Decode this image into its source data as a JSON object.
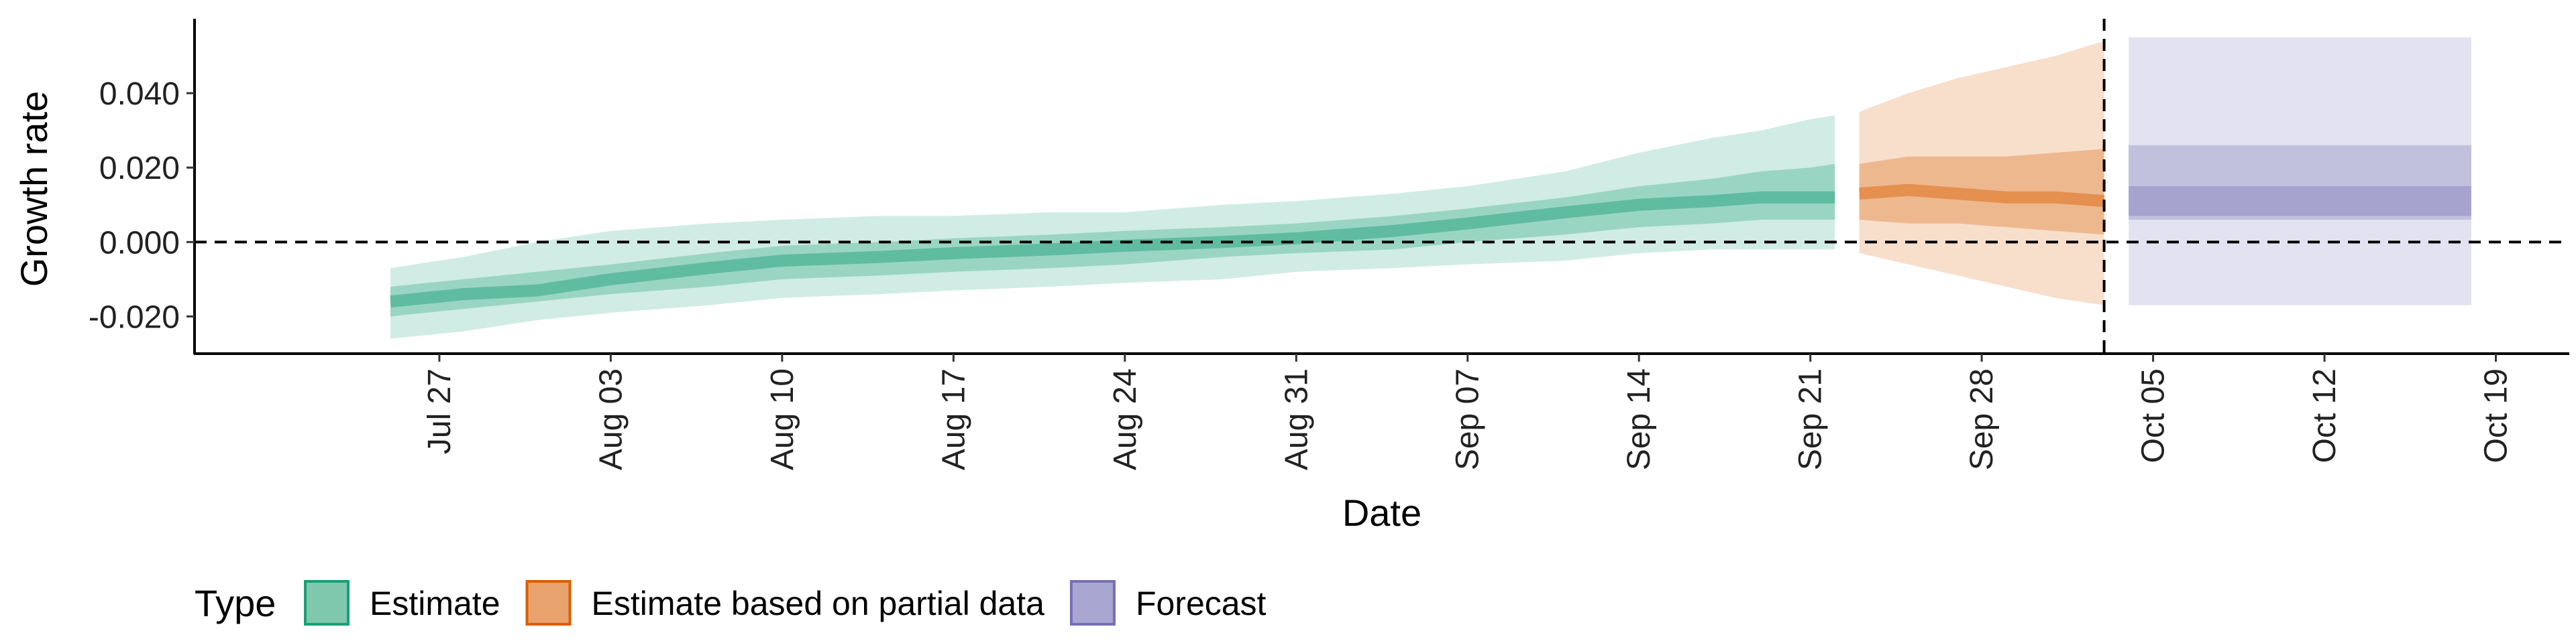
{
  "chart_data": {
    "type": "area",
    "xlabel": "Date",
    "ylabel": "Growth rate",
    "x_range": [
      "2021-07-17",
      "2021-10-22"
    ],
    "ylim": [
      -0.03,
      0.06
    ],
    "y_ticks": [
      -0.02,
      0.0,
      0.02,
      0.04
    ],
    "y_tick_labels": [
      "-0.020",
      "0.000",
      "0.020",
      "0.040"
    ],
    "x_ticks": [
      "2021-07-27",
      "2021-08-03",
      "2021-08-10",
      "2021-08-17",
      "2021-08-24",
      "2021-08-31",
      "2021-09-07",
      "2021-09-14",
      "2021-09-21",
      "2021-09-28",
      "2021-10-05",
      "2021-10-12",
      "2021-10-19"
    ],
    "x_tick_labels": [
      "Jul 27",
      "Aug 03",
      "Aug 10",
      "Aug 17",
      "Aug 24",
      "Aug 31",
      "Sep 07",
      "Sep 14",
      "Sep 21",
      "Sep 28",
      "Oct 05",
      "Oct 12",
      "Oct 19"
    ],
    "hline_y": 0.0,
    "vline_x": "2021-10-03",
    "grid": false,
    "legend": {
      "title": "Type",
      "position": "bottom-left",
      "entries": [
        {
          "label": "Estimate",
          "fill": "#7fc8ad",
          "stroke": "#1b9e77"
        },
        {
          "label": "Estimate based on partial data",
          "fill": "#e8a26e",
          "stroke": "#d95f02"
        },
        {
          "label": "Forecast",
          "fill": "#a9a6d1",
          "stroke": "#7570b3"
        }
      ]
    },
    "series": [
      {
        "name": "Estimate",
        "color": "#1b9e77",
        "x": [
          "2021-07-25",
          "2021-07-28",
          "2021-07-31",
          "2021-08-03",
          "2021-08-07",
          "2021-08-10",
          "2021-08-14",
          "2021-08-17",
          "2021-08-21",
          "2021-08-24",
          "2021-08-28",
          "2021-08-31",
          "2021-09-04",
          "2021-09-07",
          "2021-09-11",
          "2021-09-14",
          "2021-09-17",
          "2021-09-19",
          "2021-09-21",
          "2021-09-22"
        ],
        "median": [
          -0.016,
          -0.014,
          -0.013,
          -0.01,
          -0.007,
          -0.005,
          -0.004,
          -0.003,
          -0.002,
          -0.001,
          0.0,
          0.001,
          0.003,
          0.005,
          0.008,
          0.01,
          0.011,
          0.012,
          0.012,
          0.012
        ],
        "lower_90": [
          -0.026,
          -0.024,
          -0.021,
          -0.019,
          -0.017,
          -0.015,
          -0.014,
          -0.013,
          -0.012,
          -0.011,
          -0.01,
          -0.008,
          -0.007,
          -0.006,
          -0.005,
          -0.003,
          -0.002,
          -0.002,
          -0.002,
          -0.002
        ],
        "upper_90": [
          -0.007,
          -0.004,
          0.0,
          0.003,
          0.005,
          0.006,
          0.007,
          0.007,
          0.008,
          0.008,
          0.01,
          0.011,
          0.013,
          0.015,
          0.019,
          0.024,
          0.028,
          0.03,
          0.033,
          0.034
        ],
        "lower_50": [
          -0.02,
          -0.018,
          -0.016,
          -0.014,
          -0.012,
          -0.01,
          -0.009,
          -0.008,
          -0.007,
          -0.006,
          -0.004,
          -0.003,
          -0.002,
          0.0,
          0.002,
          0.004,
          0.005,
          0.006,
          0.006,
          0.006
        ],
        "upper_50": [
          -0.012,
          -0.01,
          -0.008,
          -0.006,
          -0.003,
          -0.001,
          0.0,
          0.001,
          0.002,
          0.003,
          0.004,
          0.005,
          0.007,
          0.009,
          0.012,
          0.015,
          0.017,
          0.019,
          0.02,
          0.021
        ]
      },
      {
        "name": "Estimate based on partial data",
        "color": "#d95f02",
        "x": [
          "2021-09-23",
          "2021-09-25",
          "2021-09-27",
          "2021-09-29",
          "2021-10-01",
          "2021-10-03"
        ],
        "median": [
          0.013,
          0.014,
          0.013,
          0.012,
          0.012,
          0.011
        ],
        "lower_90": [
          -0.003,
          -0.006,
          -0.009,
          -0.012,
          -0.015,
          -0.017
        ],
        "upper_90": [
          0.035,
          0.04,
          0.044,
          0.047,
          0.05,
          0.054
        ],
        "lower_50": [
          0.006,
          0.005,
          0.005,
          0.004,
          0.003,
          0.002
        ],
        "upper_50": [
          0.021,
          0.023,
          0.023,
          0.023,
          0.024,
          0.025
        ]
      },
      {
        "name": "Forecast",
        "color": "#7570b3",
        "x": [
          "2021-10-04",
          "2021-10-18"
        ],
        "median": [
          0.01,
          0.01
        ],
        "lower_90": [
          -0.017,
          -0.017
        ],
        "upper_90": [
          0.055,
          0.055
        ],
        "lower_50": [
          0.006,
          0.006
        ],
        "upper_50": [
          0.026,
          0.026
        ],
        "lower_20": [
          0.007,
          0.007
        ],
        "upper_20": [
          0.015,
          0.015
        ]
      }
    ]
  }
}
